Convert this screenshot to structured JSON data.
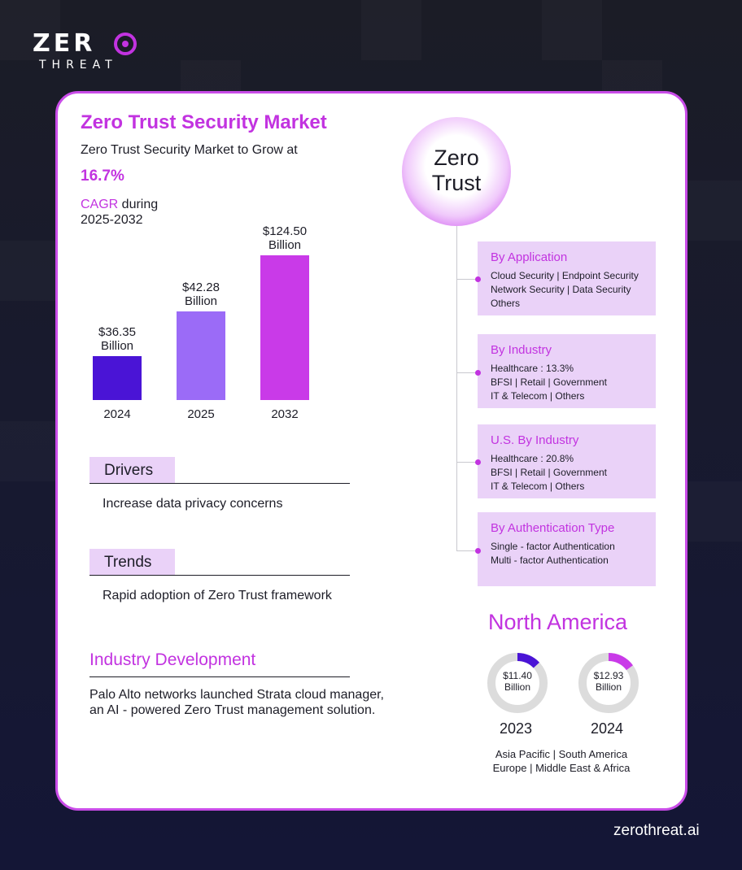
{
  "brand": {
    "logo_top": "ZER",
    "logo_bottom": "THREAT",
    "footer_url": "zerothreat.ai",
    "accent_color": "#c233e0"
  },
  "market": {
    "title": "Zero Trust Security Market",
    "grow_text": "Zero Trust Security Market to Grow at",
    "cagr_value": "16.7%",
    "cagr_word": "CAGR",
    "cagr_during": " during",
    "period": "2025-2032"
  },
  "chart_data": {
    "type": "bar",
    "categories": [
      "2024",
      "2025",
      "2032"
    ],
    "values": [
      36.35,
      42.28,
      124.5
    ],
    "value_labels": [
      "$36.35",
      "$42.28",
      "$124.50"
    ],
    "unit_label": "Billion",
    "colors": [
      "#4a14d6",
      "#9b6bf7",
      "#c93ae8"
    ],
    "title": "",
    "xlabel": "",
    "ylabel": ""
  },
  "drivers": {
    "label": "Drivers",
    "text": "Increase data privacy concerns"
  },
  "trends": {
    "label": "Trends",
    "text": "Rapid adoption of Zero Trust framework"
  },
  "industry": {
    "title": "Industry Development",
    "line1": "Palo Alto networks launched Strata cloud manager,",
    "line2": "an AI -  powered Zero Trust management solution."
  },
  "zero_trust": {
    "line1": "Zero",
    "line2": "Trust"
  },
  "segments": [
    {
      "title": "By Application",
      "lines": [
        "Cloud Security | Endpoint Security",
        "Network Security | Data Security",
        "Others"
      ]
    },
    {
      "title": "By Industry",
      "lines": [
        "Healthcare : 13.3%",
        "BFSI | Retail | Government",
        "IT & Telecom | Others"
      ]
    },
    {
      "title": "U.S. By Industry",
      "lines": [
        "Healthcare : 20.8%",
        "BFSI | Retail | Government",
        "IT & Telecom | Others"
      ]
    },
    {
      "title": "By Authentication Type",
      "lines": [
        "Single - factor Authentication",
        "Multi - factor Authentication"
      ]
    }
  ],
  "north_america": {
    "title": "North America",
    "donuts": [
      {
        "value": "$11.40",
        "unit": "Billion",
        "year": "2023",
        "fill_fraction": 0.13,
        "color": "#4a14d6"
      },
      {
        "value": "$12.93",
        "unit": "Billion",
        "year": "2024",
        "fill_fraction": 0.15,
        "color": "#c93ae8"
      }
    ],
    "regions_line1": "Asia Pacific | South America",
    "regions_line2": "Europe | Middle East & Africa"
  }
}
